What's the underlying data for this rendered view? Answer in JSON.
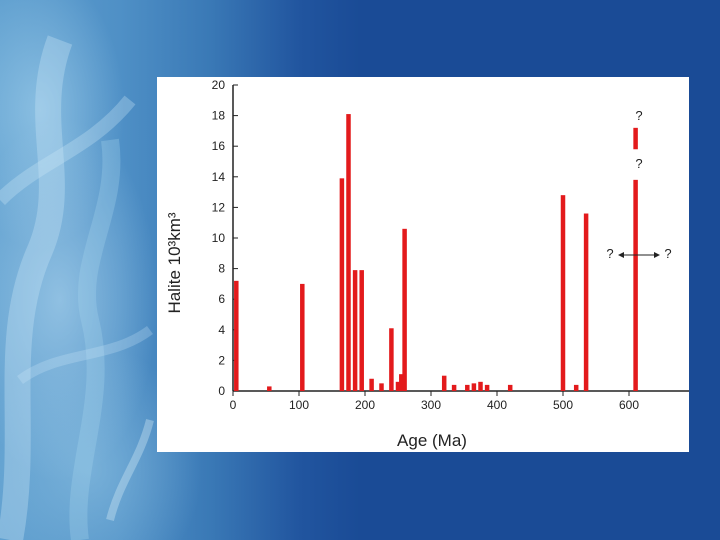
{
  "chart_data": {
    "type": "bar",
    "title": "",
    "xlabel": "Age (Ma)",
    "ylabel": "Halite 10³km³",
    "xlim": [
      0,
      700
    ],
    "ylim": [
      0,
      20
    ],
    "x_ticks": [
      0,
      100,
      200,
      300,
      400,
      500,
      600
    ],
    "y_ticks": [
      0,
      2,
      4,
      6,
      8,
      10,
      12,
      14,
      16,
      18,
      20
    ],
    "bar_color": "#e31a1c",
    "grid": false,
    "x": [
      5,
      55,
      105,
      165,
      175,
      185,
      195,
      210,
      225,
      240,
      250,
      255,
      260,
      320,
      335,
      355,
      365,
      375,
      385,
      420,
      500,
      520,
      535,
      610
    ],
    "values": [
      7.2,
      0.3,
      7.0,
      13.9,
      18.1,
      7.9,
      7.9,
      0.8,
      0.5,
      4.1,
      0.6,
      1.1,
      10.6,
      1.0,
      0.4,
      0.4,
      0.5,
      0.6,
      0.4,
      0.4,
      12.8,
      0.4,
      11.6,
      13.8
    ],
    "uncertain_segment": {
      "x": 610,
      "from": 15.8,
      "to": 17.2
    },
    "annotations": {
      "q_top": "?",
      "q_mid": "?",
      "q_left": "?",
      "q_right": "?"
    }
  }
}
